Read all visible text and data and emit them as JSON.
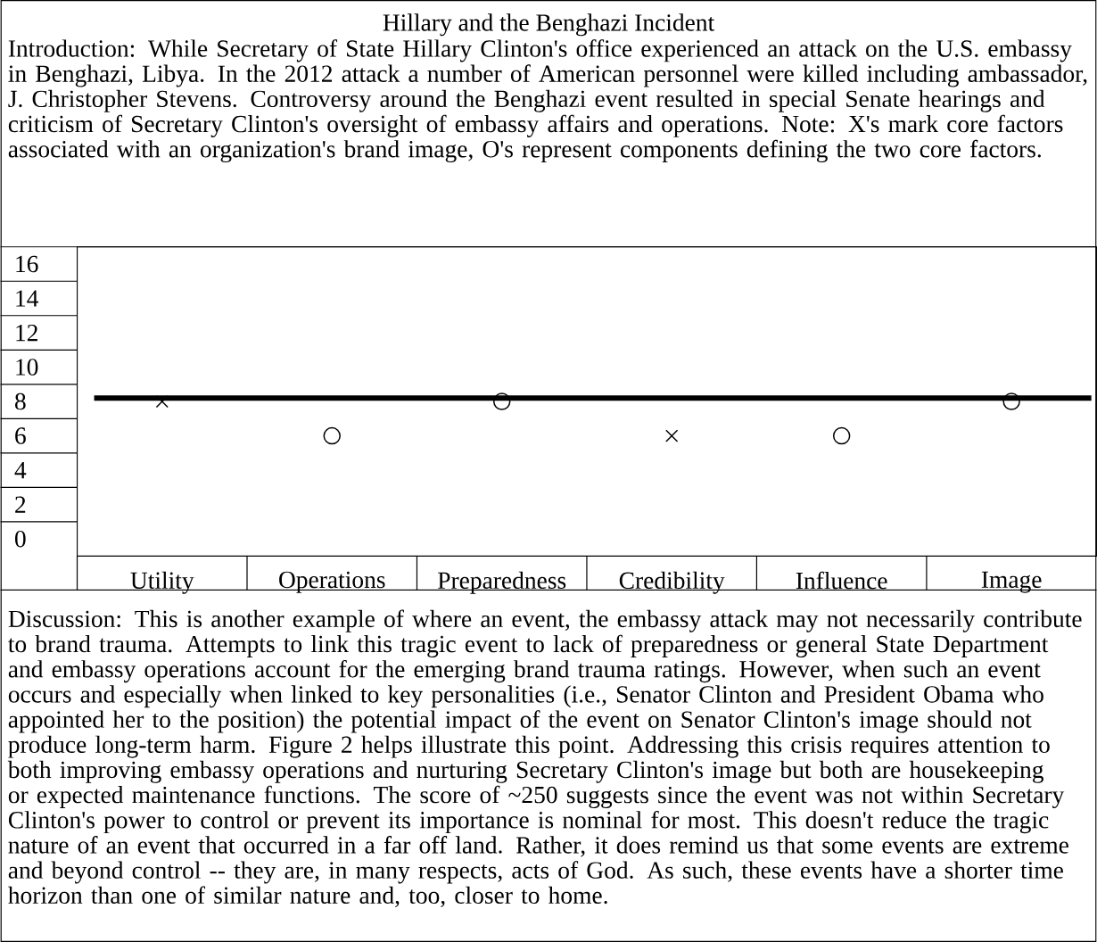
{
  "chart_data": {
    "type": "scatter",
    "title": "Hillary and the Benghazi Incident",
    "categories": [
      "Utility",
      "Operations",
      "Preparedness",
      "Credibility",
      "Influence",
      "Image"
    ],
    "series": [
      {
        "color": "#000000",
        "marker": "cross",
        "values": [
          8,
          null,
          null,
          6,
          null,
          null
        ]
      },
      {
        "color": "#000000",
        "marker": "circle",
        "values": [
          null,
          6,
          8,
          null,
          6,
          8
        ]
      }
    ],
    "ylim": [
      -1,
      17
    ],
    "yticks": [
      0,
      2,
      4,
      6,
      8,
      10,
      12,
      14,
      16
    ],
    "grid": false,
    "ref_lines": [
      {
        "axis": "y",
        "value": 8.2,
        "color": "#000000"
      }
    ],
    "annotations": [
      "Introduction: While Secretary of State Hillary Clinton's office experienced an attack on the U.S. embassy in Benghazi, Libya.  In the 2012 attack a number of American personnel were killed including ambassador, J. Christopher Stevens.   Controversy around the Benghazi event resulted in special Senate hearings and criticism of Secretary Clinton's oversight of embassy affairs and operations. Note: X's mark core factors associated with an organization's brand image, O's represent components defining the two core factors.",
      "Discussion:  This is another example of where an event, the embassy attack may not necessarily contribute to brand trauma.  Attempts to link this tragic event to lack of preparedness or general State Department and embassy operations account for the emerging brand trauma ratings.  However, when such an event occurs and especially when linked to key personalities (i.e., Senator Clinton and President Obama who appointed her to the position) the potential impact of the event on Senator Clinton's image should not produce long-term harm.  Figure 2 helps illustrate this point.  Addressing this crisis requires attention to both improving embassy operations and nurturing Secretary Clinton's image but both are housekeeping or expected maintenance functions.   The score of ~250 suggests since the event was not within Secretary Clinton's power to control or prevent its importance is nominal for most.  This doesn't reduce the tragic nature of an event that occurred in a far off land.  Rather, it does remind us that some events are extreme and beyond control -- they are, in many respects, acts of God.  As such, these events have a shorter time horizon than one of similar nature and, too, closer to home."
    ]
  }
}
